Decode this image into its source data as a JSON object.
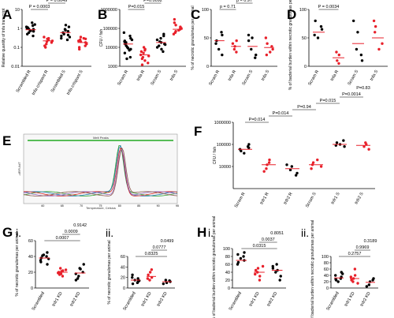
{
  "panels": {
    "A": {
      "letter": "A",
      "ylabel": "Relative quantity of tnfa transcript",
      "yticks": [
        "10",
        "1",
        "0.1",
        "0.01"
      ],
      "categories": [
        "Scrambled R",
        "tnfa crispant R",
        "Scrambled S",
        "tnfa crispant S"
      ],
      "pvals": [
        "P = 0.0003",
        "P = 0.0049"
      ]
    },
    "B": {
      "letter": "B",
      "ylabel": "CFU / fish",
      "yticks": [
        "1000000",
        "100000",
        "10000",
        "1000"
      ],
      "categories": [
        "Scram R",
        "tnfa R",
        "Scram S",
        "tnfa S"
      ],
      "pvals": [
        "P=0.015",
        "P=0.0092"
      ]
    },
    "C": {
      "letter": "C",
      "ylabel": "% of necrotic granulomas per animal",
      "yticks": [
        "100",
        "50",
        "0"
      ],
      "categories": [
        "Scram R",
        "tnfa R",
        "Scram S",
        "tnfa S"
      ],
      "pvals": [
        "p = 0.71",
        "p = 0.97"
      ]
    },
    "D": {
      "letter": "D",
      "ylabel": "% of bacterial burden within necrotic granulomas per animal",
      "yticks": [
        "100",
        "50",
        "0"
      ],
      "categories": [
        "Scram R",
        "tnfa R",
        "Scram S",
        "tnfa S"
      ],
      "pvals": [
        "P = 0.0034"
      ]
    },
    "E": {
      "letter": "E",
      "title": "Melt Peaks",
      "ylabel": "-dRFU/dT",
      "xlabel": "Temperature, Celsius",
      "xticks": [
        "60",
        "65",
        "70",
        "75",
        "80",
        "85",
        "90",
        "95"
      ]
    },
    "F": {
      "letter": "F",
      "ylabel": "CFU / fish",
      "yticks": [
        "1000000",
        "100000",
        "10000"
      ],
      "categories": [
        "Scram R",
        "tnfr1 R",
        "tnfr2 R",
        "Scram S",
        "tnfr1 S",
        "tnfr2 S"
      ],
      "pvals": [
        "P=0.014",
        "P=0.014",
        "P=0.94",
        "P=0.015",
        "P=0.0014",
        "P=0.83"
      ]
    },
    "G": {
      "letter": "G",
      "i": {
        "roman": "i.",
        "ylabel": "% of necrotic granulomas per animal",
        "yticks": [
          "60",
          "40",
          "20",
          "0"
        ],
        "categories": [
          "Scrambled",
          "tnfr1 KD",
          "tnfr2 KD"
        ],
        "pvals": [
          "0.0007",
          "0.0009",
          "0.9142"
        ]
      },
      "ii": {
        "roman": "ii.",
        "ylabel": "% of necrotic granulomas per animal",
        "yticks": [
          "60",
          "40",
          "20",
          "0"
        ],
        "categories": [
          "Scrambled",
          "tnfr1 KD",
          "tnfr2 KD"
        ],
        "pvals": [
          "0.8325",
          "0.0777",
          "0.0499"
        ]
      }
    },
    "H": {
      "letter": "H",
      "i": {
        "roman": "i.",
        "ylabel": "% of bacterial burden within necrotic granulomas per animal",
        "yticks": [
          "100",
          "80",
          "60",
          "40",
          "20",
          "0"
        ],
        "categories": [
          "Scrambled",
          "tnfr1 KD",
          "tnfr2 KD"
        ],
        "pvals": [
          "0.0315",
          "0.0037",
          "0.8051"
        ]
      },
      "ii": {
        "roman": "ii.",
        "ylabel": "% of bacterial burden within necrotic granulomas per animal",
        "yticks": [
          "100",
          "80",
          "60",
          "40",
          "20",
          "0"
        ],
        "categories": [
          "Scrambled",
          "tnfr1 KD",
          "tnfr2 KD"
        ],
        "pvals": [
          "0.2757",
          "0.9969",
          "0.3189"
        ]
      }
    }
  },
  "colors": {
    "scramble": "#000000",
    "treated": "#e8202a",
    "mean": "#e8202a",
    "melt": [
      "#2ca02c",
      "#1f77b4",
      "#d62728",
      "#9467bd",
      "#8c564b"
    ],
    "threshold": "#22aa22"
  },
  "chart_data": [
    {
      "panel": "A",
      "type": "scatter",
      "yscale": "log",
      "ylim": [
        0.01,
        10
      ],
      "categories": [
        "Scrambled R",
        "tnfa crispant R",
        "Scrambled S",
        "tnfa crispant S"
      ],
      "means": [
        0.85,
        0.22,
        0.6,
        0.18
      ],
      "points": [
        [
          1.4,
          1.0,
          0.8,
          0.7,
          1.1,
          0.9,
          0.5,
          1.6,
          0.6,
          0.4,
          1.2,
          0.95,
          2.0,
          0.75
        ],
        [
          0.3,
          0.2,
          0.15,
          0.25,
          0.12,
          0.35,
          0.18,
          0.1,
          0.28,
          0.22
        ],
        [
          0.9,
          0.5,
          1.2,
          0.4,
          0.7,
          0.3,
          1.5,
          0.6,
          0.8,
          0.45,
          0.25,
          0.35
        ],
        [
          0.2,
          0.15,
          0.3,
          0.1,
          0.25,
          0.18,
          0.12,
          0.22,
          0.08,
          0.35,
          0.28
        ]
      ]
    },
    {
      "panel": "B",
      "type": "scatter",
      "yscale": "log",
      "ylim": [
        1000,
        1000000
      ],
      "categories": [
        "Scram R",
        "tnfa R",
        "Scram S",
        "tnfa S"
      ],
      "means": [
        15000,
        4000,
        18000,
        90000
      ],
      "points": [
        [
          40000,
          20000,
          10000,
          8000,
          15000,
          30000,
          5000,
          25000,
          12000,
          3000,
          60000,
          18000,
          7000,
          9000,
          22000,
          2500
        ],
        [
          8000,
          5000,
          3000,
          2000,
          6000,
          4000,
          1500,
          2500,
          10000,
          3500,
          1200,
          7000
        ],
        [
          30000,
          20000,
          15000,
          10000,
          40000,
          25000,
          8000,
          12000,
          18000,
          50000,
          6000,
          14000
        ],
        [
          150000,
          100000,
          80000,
          200000,
          60000,
          120000,
          90000,
          50000,
          300000,
          70000,
          110000
        ]
      ]
    },
    {
      "panel": "C",
      "type": "scatter",
      "ylim": [
        0,
        100
      ],
      "categories": [
        "Scram R",
        "tnfa R",
        "Scram S",
        "tnfa S"
      ],
      "means": [
        45,
        35,
        35,
        33
      ],
      "points": [
        [
          60,
          40,
          30,
          55,
          45,
          20
        ],
        [
          45,
          35,
          30,
          25,
          40
        ],
        [
          50,
          30,
          20,
          45,
          15,
          55
        ],
        [
          40,
          30,
          25,
          50,
          20,
          35
        ]
      ]
    },
    {
      "panel": "D",
      "type": "scatter",
      "ylim": [
        0,
        100
      ],
      "categories": [
        "Scram R",
        "tnfa R",
        "Scram S",
        "tnfa S"
      ],
      "means": [
        60,
        15,
        40,
        50
      ],
      "points": [
        [
          70,
          55,
          50,
          65,
          80
        ],
        [
          20,
          10,
          25,
          5
        ],
        [
          60,
          30,
          10,
          80,
          20
        ],
        [
          70,
          40,
          30,
          80,
          60
        ]
      ]
    },
    {
      "panel": "E",
      "type": "line",
      "title": "Melt Peaks",
      "xlabel": "Temperature, Celsius",
      "ylabel": "-dRFU/dT",
      "xlim": [
        55,
        95
      ],
      "threshold": 0.8
    },
    {
      "panel": "F",
      "type": "scatter",
      "yscale": "log",
      "ylim": [
        1000,
        1000000
      ],
      "categories": [
        "Scram R",
        "tnfr1 R",
        "tnfr2 R",
        "Scram S",
        "tnfr1 S",
        "tnfr2 S"
      ],
      "means": [
        60000,
        12000,
        8000,
        12000,
        100000,
        90000
      ],
      "points": [
        [
          80000,
          60000,
          40000,
          100000,
          50000,
          70000
        ],
        [
          20000,
          12000,
          8000,
          15000,
          6000
        ],
        [
          10000,
          7000,
          5000,
          12000,
          4000
        ],
        [
          15000,
          10000,
          20000,
          8000,
          12000
        ],
        [
          150000,
          100000,
          80000,
          120000,
          90000
        ],
        [
          100000,
          80000,
          120000,
          60000
        ]
      ]
    },
    {
      "panel": "G i.",
      "type": "scatter",
      "ylim": [
        0,
        60
      ],
      "categories": [
        "Scrambled",
        "tnfr1 KD",
        "tnfr2 KD"
      ],
      "means": [
        38,
        20,
        19
      ],
      "points": [
        [
          40,
          35,
          42,
          30,
          38,
          45,
          33,
          37,
          41
        ],
        [
          22,
          18,
          25,
          15,
          20,
          19,
          23,
          17,
          21
        ],
        [
          25,
          15,
          30,
          10,
          20,
          18,
          24,
          12
        ]
      ]
    },
    {
      "panel": "G ii.",
      "type": "scatter",
      "ylim": [
        0,
        60
      ],
      "categories": [
        "Scrambled",
        "tnfr1 KD",
        "tnfr2 KD"
      ],
      "means": [
        15,
        22,
        12
      ],
      "points": [
        [
          10,
          20,
          15,
          12,
          8,
          18,
          25,
          14
        ],
        [
          20,
          30,
          15,
          35,
          25,
          18
        ],
        [
          10,
          15,
          12,
          8,
          14
        ]
      ]
    },
    {
      "panel": "H i.",
      "type": "scatter",
      "ylim": [
        0,
        100
      ],
      "categories": [
        "Scrambled",
        "tnfr1 KD",
        "tnfr2 KD"
      ],
      "means": [
        70,
        40,
        45
      ],
      "points": [
        [
          80,
          60,
          75,
          90,
          65,
          70,
          85
        ],
        [
          30,
          50,
          40,
          20,
          45,
          35,
          55
        ],
        [
          60,
          40,
          30,
          50,
          20,
          55,
          45
        ]
      ]
    },
    {
      "panel": "H ii.",
      "type": "scatter",
      "ylim": [
        0,
        100
      ],
      "categories": [
        "Scrambled",
        "tnfr1 KD",
        "tnfr2 KD"
      ],
      "means": [
        32,
        30,
        18
      ],
      "points": [
        [
          30,
          40,
          20,
          50,
          25,
          35,
          28,
          45
        ],
        [
          40,
          30,
          20,
          60,
          25,
          35,
          15
        ],
        [
          20,
          10,
          30,
          5,
          25
        ]
      ]
    }
  ]
}
